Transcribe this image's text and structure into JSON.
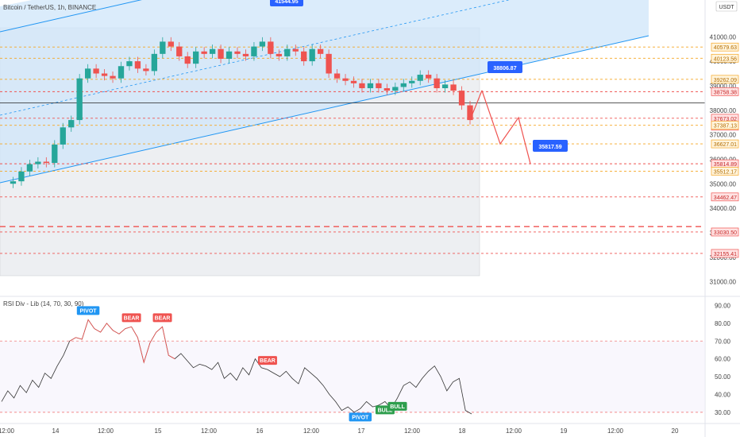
{
  "header": {
    "title": "Bitcoin / TetherUS, 1h, BINANCE",
    "currency": "USDT"
  },
  "colors": {
    "up": "#26a69a",
    "down": "#ef5350",
    "channel_fill": "#cfe6fa",
    "channel_line": "#2196f3",
    "level_orange": "#f5a623",
    "level_red": "#ef5350",
    "callout_blue": "#2962ff",
    "rsi_line": "#333333",
    "rsi_bear": "#ef5350",
    "rsi_bull": "#2e9e4d",
    "rsi_pivot": "#2196f3"
  },
  "chart_data": [
    {
      "type": "candlestick",
      "title": "Bitcoin / TetherUS, 1h, BINANCE",
      "ylim": [
        30500,
        42500
      ],
      "y_axis_ticks": [
        31000,
        32000,
        33000,
        34000,
        35000,
        36000,
        37000,
        38000,
        39000,
        40000,
        41000
      ],
      "x_tick_labels": [
        "12:00",
        "14",
        "12:00",
        "15",
        "12:00",
        "16",
        "12:00",
        "17",
        "12:00",
        "18",
        "12:00",
        "19",
        "12:00",
        "20"
      ],
      "price_path": [
        35000,
        35100,
        35500,
        35800,
        35900,
        35850,
        36600,
        37300,
        37600,
        39300,
        39700,
        39500,
        39400,
        39300,
        39800,
        40000,
        39700,
        39600,
        40300,
        40800,
        40600,
        40200,
        39900,
        40400,
        40300,
        40500,
        40100,
        40400,
        40300,
        40200,
        40600,
        40800,
        40300,
        40200,
        40500,
        40400,
        40000,
        40500,
        40300,
        39500,
        39300,
        39200,
        39100,
        38900,
        39100,
        38900,
        38800,
        38950,
        39100,
        39200,
        39450,
        39300,
        38900,
        39050,
        38800,
        38200,
        37600
      ],
      "highlight_labels": [
        "41544.95",
        "38806.87",
        "35817.59"
      ],
      "projection": [
        38806.87,
        36627,
        37700,
        35817.59
      ],
      "price_levels": [
        {
          "value": "40579.63",
          "color": "orange"
        },
        {
          "value": "40123.56",
          "color": "orange"
        },
        {
          "value": "39262.09",
          "color": "orange"
        },
        {
          "value": "38758.38",
          "color": "red"
        },
        {
          "value": "37673.02",
          "color": "red",
          "sub": "35:54"
        },
        {
          "value": "37387.13",
          "color": "orange"
        },
        {
          "value": "36627.01",
          "color": "orange"
        },
        {
          "value": "35814.89",
          "color": "red"
        },
        {
          "value": "35512.17",
          "color": "orange"
        },
        {
          "value": "34462.47",
          "color": "red"
        },
        {
          "value": "33030.50",
          "color": "red"
        },
        {
          "value": "32155.41",
          "color": "red"
        }
      ],
      "dashed_bold_level": 33250
    },
    {
      "type": "line",
      "title": "RSI Div - Lib (14, 70, 30, 90)",
      "ylim": [
        25,
        92
      ],
      "y_axis_ticks": [
        30,
        40,
        50,
        60,
        70,
        80,
        90
      ],
      "guide_levels": [
        70,
        30
      ],
      "values": [
        36,
        42,
        38,
        45,
        41,
        48,
        44,
        52,
        49,
        56,
        62,
        70,
        72,
        71,
        82,
        77,
        75,
        80,
        76,
        74,
        77,
        78,
        72,
        58,
        69,
        75,
        78,
        62,
        60,
        63,
        59,
        55,
        57,
        56,
        54,
        58,
        49,
        52,
        48,
        55,
        51,
        60,
        55,
        54,
        52,
        50,
        53,
        49,
        46,
        55,
        52,
        49,
        45,
        40,
        36,
        31,
        33,
        30,
        32,
        36,
        33,
        34,
        36,
        32,
        38,
        45,
        47,
        44,
        49,
        53,
        56,
        50,
        42,
        47,
        49,
        31,
        29
      ],
      "markers": [
        {
          "label": "PIVOT",
          "type": "pivot",
          "at": 14
        },
        {
          "label": "BEAR",
          "type": "bear",
          "at": 21
        },
        {
          "label": "BEAR",
          "type": "bear",
          "at": 26
        },
        {
          "label": "BEAR",
          "type": "bear",
          "at": 43
        },
        {
          "label": "PIVOT",
          "type": "pivot",
          "at": 58
        },
        {
          "label": "BULL",
          "type": "bull",
          "at": 62
        },
        {
          "label": "BULL",
          "type": "bull",
          "at": 64
        }
      ]
    }
  ]
}
